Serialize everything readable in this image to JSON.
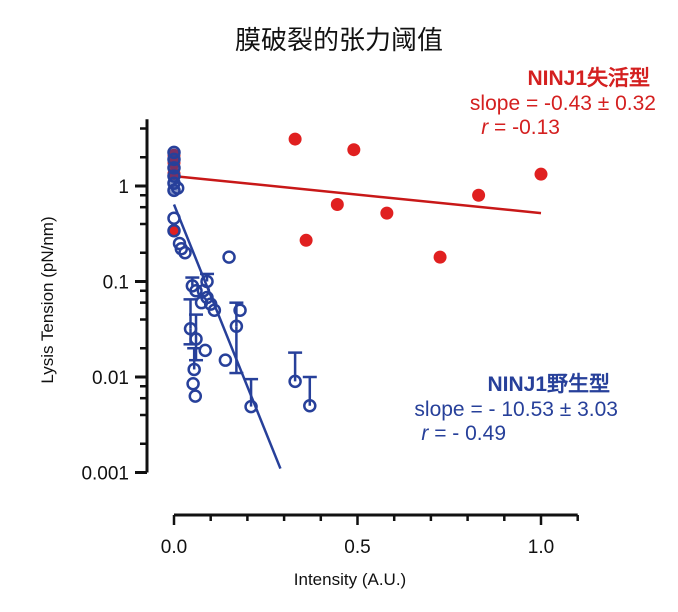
{
  "chart_data": {
    "type": "scatter",
    "title": "膜破裂的张力阈值",
    "xlabel": "Intensity (A.U.)",
    "ylabel": "Lysis Tension (pN/nm)",
    "xlim": [
      0,
      1.1
    ],
    "ylim": [
      0.001,
      5
    ],
    "yscale": "log",
    "grid": false,
    "x_ticks": [
      0.0,
      0.5,
      1.0
    ],
    "x_tick_labels": [
      "0.0",
      "0.5",
      "1.0"
    ],
    "y_ticks": [
      1,
      0.1,
      0.01,
      0.001
    ],
    "y_tick_labels": [
      "1",
      "0.1",
      "0.01",
      "0.001"
    ],
    "series": [
      {
        "name": "NINJ1失活型",
        "color": "#e02020",
        "marker": "filled-circle",
        "points": [
          [
            0.0,
            2.1
          ],
          [
            0.0,
            1.75
          ],
          [
            0.0,
            1.35
          ],
          [
            0.0,
            0.34
          ],
          [
            0.33,
            3.1
          ],
          [
            0.36,
            0.27
          ],
          [
            0.445,
            0.64
          ],
          [
            0.49,
            2.4
          ],
          [
            0.58,
            0.52
          ],
          [
            0.725,
            0.18
          ],
          [
            0.83,
            0.8
          ],
          [
            1.0,
            1.33
          ]
        ],
        "fit": {
          "x": [
            0.0,
            1.0
          ],
          "y": [
            1.27,
            0.52
          ]
        },
        "annotation": {
          "label": "NINJ1失活型",
          "slope": "slope = -0.43 ± 0.32",
          "r_sym": "r",
          "r_val": " = -0.13"
        }
      },
      {
        "name": "NINJ1野生型",
        "color": "#27409a",
        "marker": "open-circle",
        "points": [
          [
            0.0,
            2.25
          ],
          [
            0.0,
            1.9
          ],
          [
            0.0,
            1.55
          ],
          [
            0.0,
            1.27
          ],
          [
            0.0,
            1.07
          ],
          [
            0.0,
            0.9
          ],
          [
            0.0,
            0.46
          ],
          [
            0.0,
            0.34
          ],
          [
            0.01,
            0.95
          ],
          [
            0.015,
            0.25
          ],
          [
            0.02,
            0.22
          ],
          [
            0.03,
            0.2
          ],
          [
            0.15,
            0.18
          ],
          [
            0.05,
            0.09
          ],
          [
            0.06,
            0.08
          ],
          [
            0.09,
            0.1
          ],
          [
            0.08,
            0.08
          ],
          [
            0.09,
            0.068
          ],
          [
            0.1,
            0.058
          ],
          [
            0.075,
            0.06
          ],
          [
            0.11,
            0.05
          ],
          [
            0.045,
            0.032
          ],
          [
            0.06,
            0.025
          ],
          [
            0.085,
            0.019
          ],
          [
            0.055,
            0.012
          ],
          [
            0.052,
            0.0085
          ],
          [
            0.058,
            0.0063
          ],
          [
            0.18,
            0.05
          ],
          [
            0.17,
            0.034
          ],
          [
            0.14,
            0.015
          ],
          [
            0.21,
            0.0049
          ],
          [
            0.33,
            0.009
          ],
          [
            0.37,
            0.005
          ]
        ],
        "error_upper": [
          [
            0.05,
            0.09,
            0.11
          ],
          [
            0.09,
            0.1,
            0.12
          ],
          [
            0.045,
            0.032,
            0.065
          ],
          [
            0.06,
            0.025,
            0.045
          ],
          [
            0.055,
            0.012,
            0.02
          ],
          [
            0.17,
            0.034,
            0.06
          ],
          [
            0.21,
            0.0049,
            0.0095
          ],
          [
            0.33,
            0.009,
            0.018
          ],
          [
            0.37,
            0.005,
            0.01
          ]
        ],
        "error_lower": [
          [
            0.17,
            0.034,
            0.011
          ],
          [
            0.045,
            0.032,
            0.022
          ],
          [
            0.06,
            0.025,
            0.015
          ]
        ],
        "fit": {
          "x": [
            0.0,
            0.29
          ],
          "y": [
            0.64,
            0.0011
          ]
        },
        "annotation": {
          "label": "NINJ1野生型",
          "slope": "slope = - 10.53 ± 3.03",
          "r_sym": "r",
          "r_val": " = - 0.49"
        }
      }
    ]
  }
}
